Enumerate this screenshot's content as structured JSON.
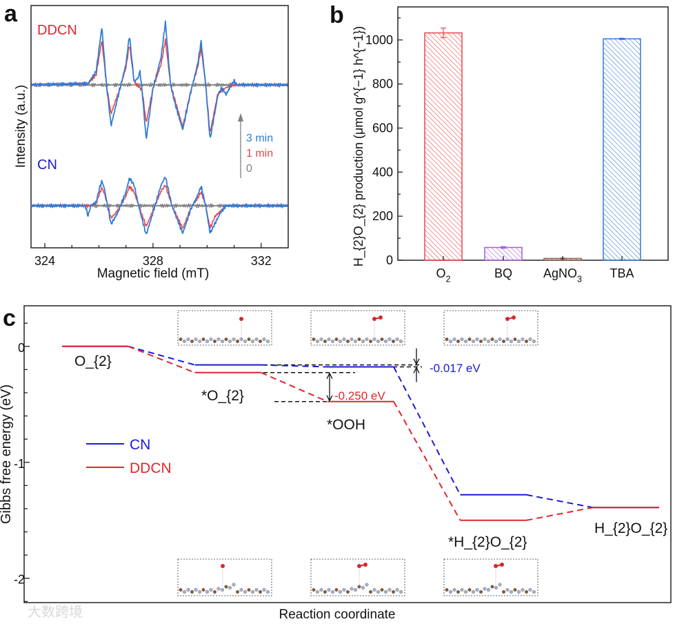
{
  "panels": {
    "a": "a",
    "b": "b",
    "c": "c"
  },
  "watermark": "大数跨境",
  "chart_data": [
    {
      "type": "line",
      "panel": "a",
      "xlabel": "Magnetic field (mT)",
      "ylabel": "Intensity (a.u.)",
      "xlim": [
        323.49,
        333.0
      ],
      "xticks": [
        324,
        328,
        332
      ],
      "group_labels": {
        "top": "DDCN",
        "bottom": "CN"
      },
      "legend": [
        "3 min",
        "1 min",
        "0"
      ],
      "colors": {
        "3 min": "#2f7bd6",
        "1 min": "#e8474c",
        "0": "#808080",
        "DDCN": "#e0252b",
        "CN": "#1a1acc"
      },
      "series": [
        {
          "group": "DDCN",
          "name": "0",
          "points": [
            [
              323.5,
              0
            ],
            [
              333,
              0
            ]
          ]
        },
        {
          "group": "DDCN",
          "name": "1 min",
          "points": [
            [
              323.5,
              0
            ],
            [
              325.6,
              2
            ],
            [
              325.9,
              15
            ],
            [
              326.11,
              65
            ],
            [
              326.28,
              0
            ],
            [
              326.45,
              -42
            ],
            [
              326.8,
              -2
            ],
            [
              327.0,
              25
            ],
            [
              327.13,
              59
            ],
            [
              327.3,
              5
            ],
            [
              327.6,
              -8
            ],
            [
              327.75,
              -55
            ],
            [
              328.0,
              -5
            ],
            [
              328.3,
              30
            ],
            [
              328.46,
              65
            ],
            [
              328.65,
              0
            ],
            [
              328.8,
              -20
            ],
            [
              329.1,
              -61
            ],
            [
              329.4,
              -8
            ],
            [
              329.65,
              25
            ],
            [
              329.78,
              53
            ],
            [
              329.95,
              0
            ],
            [
              330.11,
              -70
            ],
            [
              330.4,
              -12
            ],
            [
              330.7,
              -4
            ],
            [
              331.0,
              0
            ],
            [
              333,
              0
            ]
          ]
        },
        {
          "group": "DDCN",
          "name": "3 min",
          "points": [
            [
              323.5,
              0
            ],
            [
              325.6,
              2
            ],
            [
              325.9,
              20
            ],
            [
              326.11,
              84
            ],
            [
              326.28,
              0
            ],
            [
              326.45,
              -59
            ],
            [
              326.8,
              -2
            ],
            [
              327.0,
              30
            ],
            [
              327.13,
              72
            ],
            [
              327.3,
              5
            ],
            [
              327.45,
              10
            ],
            [
              327.52,
              20
            ],
            [
              327.6,
              -10
            ],
            [
              327.75,
              -79
            ],
            [
              328.0,
              -5
            ],
            [
              328.3,
              40
            ],
            [
              328.46,
              91
            ],
            [
              328.65,
              0
            ],
            [
              328.8,
              -25
            ],
            [
              329.1,
              -65
            ],
            [
              329.4,
              -10
            ],
            [
              329.65,
              30
            ],
            [
              329.78,
              63
            ],
            [
              329.95,
              0
            ],
            [
              330.11,
              -79
            ],
            [
              330.4,
              -15
            ],
            [
              330.55,
              -4
            ],
            [
              330.7,
              -14
            ],
            [
              330.9,
              0
            ],
            [
              331.0,
              6
            ],
            [
              331.1,
              0
            ],
            [
              333,
              0
            ]
          ]
        },
        {
          "group": "CN",
          "name": "0",
          "points": [
            [
              323.5,
              0
            ],
            [
              333,
              0
            ]
          ]
        },
        {
          "group": "CN",
          "name": "1 min",
          "points": [
            [
              323.5,
              0
            ],
            [
              325.7,
              0
            ],
            [
              325.9,
              4
            ],
            [
              326.0,
              15
            ],
            [
              326.11,
              26
            ],
            [
              326.2,
              18
            ],
            [
              326.45,
              -18
            ],
            [
              326.7,
              -7
            ],
            [
              327.0,
              14
            ],
            [
              327.13,
              28
            ],
            [
              327.3,
              20
            ],
            [
              327.5,
              -3
            ],
            [
              327.75,
              -30
            ],
            [
              328.0,
              -7
            ],
            [
              328.3,
              21
            ],
            [
              328.46,
              30
            ],
            [
              328.7,
              0
            ],
            [
              329.1,
              -33
            ],
            [
              329.4,
              -4
            ],
            [
              329.65,
              11
            ],
            [
              329.78,
              20
            ],
            [
              329.95,
              0
            ],
            [
              330.11,
              -33
            ],
            [
              330.3,
              -15
            ],
            [
              330.5,
              -8
            ],
            [
              330.7,
              0
            ],
            [
              333,
              0
            ]
          ]
        },
        {
          "group": "CN",
          "name": "3 min",
          "points": [
            [
              323.5,
              0
            ],
            [
              325.5,
              0
            ],
            [
              325.6,
              -15
            ],
            [
              325.7,
              0
            ],
            [
              325.9,
              5
            ],
            [
              326.0,
              22
            ],
            [
              326.11,
              36
            ],
            [
              326.2,
              25
            ],
            [
              326.45,
              -27
            ],
            [
              326.7,
              -10
            ],
            [
              327.0,
              20
            ],
            [
              327.13,
              40
            ],
            [
              327.3,
              30
            ],
            [
              327.5,
              -5
            ],
            [
              327.75,
              -42
            ],
            [
              328.0,
              -10
            ],
            [
              328.3,
              30
            ],
            [
              328.46,
              42
            ],
            [
              328.7,
              0
            ],
            [
              329.1,
              -40
            ],
            [
              329.4,
              -5
            ],
            [
              329.65,
              15
            ],
            [
              329.78,
              28
            ],
            [
              329.95,
              0
            ],
            [
              330.11,
              -40
            ],
            [
              330.3,
              -25
            ],
            [
              330.5,
              -10
            ],
            [
              330.7,
              0
            ],
            [
              333,
              0
            ]
          ]
        }
      ]
    },
    {
      "type": "bar",
      "panel": "b",
      "categories": [
        "O_{2}",
        "BQ",
        "AgNO_{3}",
        "TBA"
      ],
      "values": [
        1032,
        58,
        8,
        1005
      ],
      "errors": [
        22,
        4,
        2,
        3
      ],
      "colors": [
        "#e8474c",
        "#a55fd8",
        "#8b5a4a",
        "#2f7bd6"
      ],
      "ylabel": "H_{2}O_{2} production (μmol g^{−1} h^{−1})",
      "ylim": [
        0,
        1150
      ],
      "yticks": [
        0,
        200,
        400,
        600,
        800,
        1000
      ],
      "hatch": "diagonal"
    },
    {
      "type": "line",
      "subtype": "energy-profile",
      "panel": "c",
      "xlabel": "Reaction coordinate",
      "ylabel": "Gibbs free energy (eV)",
      "ylim": [
        -2.21,
        0.35
      ],
      "yticks": [
        0,
        -1,
        -2
      ],
      "steps": [
        "O_{2}",
        "*O_{2}",
        "*OOH",
        "*H_{2}O_{2}",
        "H_{2}O_{2}"
      ],
      "series": [
        {
          "name": "CN",
          "color": "#1a1ad6",
          "energies": [
            0,
            -0.16,
            -0.177,
            -1.28,
            -1.39
          ]
        },
        {
          "name": "DDCN",
          "color": "#e0252b",
          "energies": [
            0,
            -0.226,
            -0.476,
            -1.5,
            -1.39
          ]
        }
      ],
      "annotations": [
        {
          "text": "-0.250 eV",
          "color": "#e0252b"
        },
        {
          "text": "-0.017 eV",
          "color": "#1a1ad6"
        }
      ],
      "legend": [
        "CN",
        "DDCN"
      ],
      "legend_placement": "left"
    }
  ]
}
